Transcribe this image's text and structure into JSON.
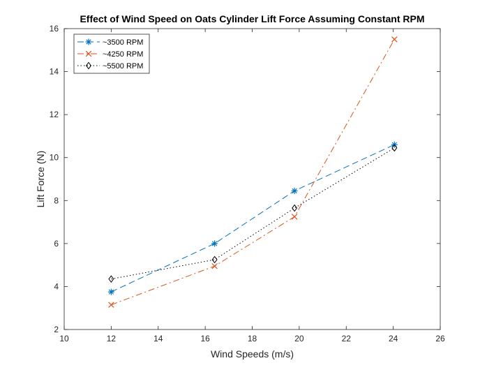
{
  "chart_data": {
    "type": "line",
    "title": "Effect of Wind Speed on Oats Cylinder Lift Force Assuming Constant RPM",
    "xlabel": "Wind Speeds (m/s)",
    "ylabel": "Lift Force (N)",
    "xlim": [
      10,
      26
    ],
    "ylim": [
      2,
      16
    ],
    "xticks": [
      10,
      12,
      14,
      16,
      18,
      20,
      22,
      24,
      26
    ],
    "yticks": [
      2,
      4,
      6,
      8,
      10,
      12,
      14,
      16
    ],
    "grid": false,
    "legend_position": "top-left",
    "series": [
      {
        "name": "~3500 RPM",
        "x": [
          12,
          16.4,
          19.8,
          24.05
        ],
        "y": [
          3.75,
          6.0,
          8.45,
          10.6
        ],
        "color": "#0072BD",
        "line_style": "dashed",
        "marker": "asterisk"
      },
      {
        "name": "~4250 RPM",
        "x": [
          12,
          16.4,
          19.8,
          24.05
        ],
        "y": [
          3.15,
          4.95,
          7.25,
          15.5
        ],
        "color": "#D95319",
        "line_style": "dash-dot",
        "marker": "x"
      },
      {
        "name": "~5500 RPM",
        "x": [
          12,
          16.4,
          19.8,
          24.05
        ],
        "y": [
          4.35,
          5.25,
          7.65,
          10.45
        ],
        "color": "#000000",
        "line_style": "dotted",
        "marker": "diamond"
      }
    ]
  }
}
